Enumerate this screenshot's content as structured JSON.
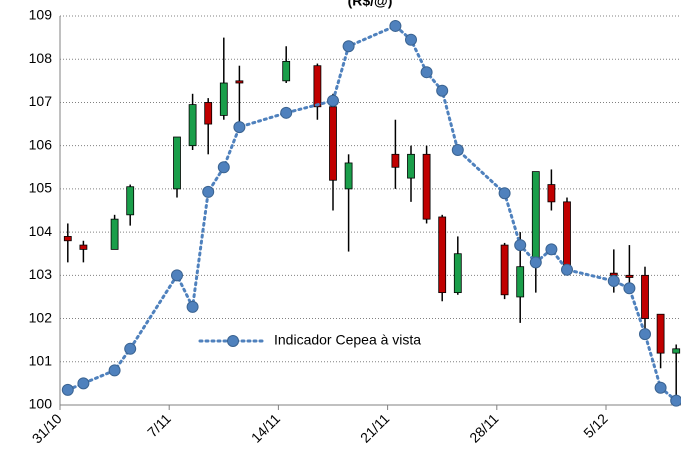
{
  "chart_data": {
    "type": "candlestick",
    "title": "(R$/@)",
    "categories": [
      "31/10",
      null,
      null,
      null,
      null,
      null,
      null,
      "7/11",
      null,
      null,
      null,
      null,
      null,
      null,
      "14/11",
      null,
      null,
      null,
      null,
      null,
      null,
      "21/11",
      null,
      null,
      null,
      null,
      null,
      null,
      "28/11",
      null,
      null,
      null,
      null,
      null,
      null,
      "5/12",
      null,
      null,
      null,
      null
    ],
    "candles": {
      "up_color": "#1a9e4a",
      "down_color": "#c00000",
      "open": [
        103.9,
        103.7,
        null,
        103.6,
        104.4,
        null,
        null,
        105.0,
        106.0,
        107.0,
        106.7,
        107.5,
        null,
        null,
        107.5,
        null,
        107.85,
        106.9,
        105.0,
        null,
        null,
        105.8,
        105.25,
        105.8,
        104.35,
        102.6,
        null,
        null,
        103.7,
        102.5,
        103.2,
        105.1,
        104.7,
        null,
        null,
        103.05,
        103.0,
        103.0,
        102.1,
        101.2
      ],
      "high": [
        104.2,
        103.8,
        null,
        104.4,
        105.1,
        null,
        null,
        106.2,
        107.2,
        107.1,
        108.5,
        107.85,
        null,
        null,
        108.3,
        null,
        107.9,
        107.2,
        105.8,
        null,
        null,
        106.6,
        106.0,
        106.0,
        104.4,
        103.9,
        null,
        null,
        103.75,
        104.0,
        105.4,
        105.45,
        104.8,
        null,
        null,
        103.6,
        103.7,
        103.2,
        102.1,
        101.4
      ],
      "low": [
        103.3,
        103.3,
        null,
        103.6,
        104.15,
        null,
        null,
        104.8,
        105.9,
        105.8,
        106.6,
        106.3,
        null,
        null,
        107.45,
        null,
        106.6,
        104.5,
        103.55,
        null,
        null,
        105.0,
        104.7,
        104.2,
        102.4,
        102.55,
        null,
        null,
        102.45,
        101.9,
        102.6,
        104.5,
        103.1,
        null,
        null,
        102.6,
        102.6,
        101.6,
        100.85,
        100.1
      ],
      "close": [
        103.8,
        103.6,
        null,
        104.3,
        105.05,
        null,
        null,
        106.2,
        106.95,
        106.5,
        107.45,
        107.45,
        null,
        null,
        107.95,
        null,
        106.9,
        105.2,
        105.6,
        null,
        null,
        105.5,
        105.8,
        104.3,
        102.6,
        103.5,
        null,
        null,
        102.55,
        103.2,
        105.4,
        104.7,
        103.2,
        null,
        null,
        103.0,
        102.95,
        102.0,
        101.2,
        101.3
      ]
    },
    "series": [
      {
        "name": "Indicador Cepea à vista",
        "color": "#4f81bd",
        "values": [
          100.35,
          100.5,
          null,
          100.8,
          101.3,
          null,
          null,
          103.0,
          102.27,
          104.93,
          105.5,
          106.43,
          null,
          null,
          106.76,
          null,
          null,
          107.04,
          108.3,
          null,
          null,
          108.77,
          108.45,
          107.7,
          107.27,
          105.9,
          null,
          null,
          104.9,
          103.7,
          103.3,
          103.6,
          103.13,
          null,
          null,
          102.87,
          102.7,
          101.64,
          100.4,
          100.1
        ]
      }
    ],
    "connect_gaps": true,
    "ylim": [
      100,
      109
    ],
    "yticks": [
      100,
      101,
      102,
      103,
      104,
      105,
      106,
      107,
      108,
      109
    ],
    "grid": true
  }
}
